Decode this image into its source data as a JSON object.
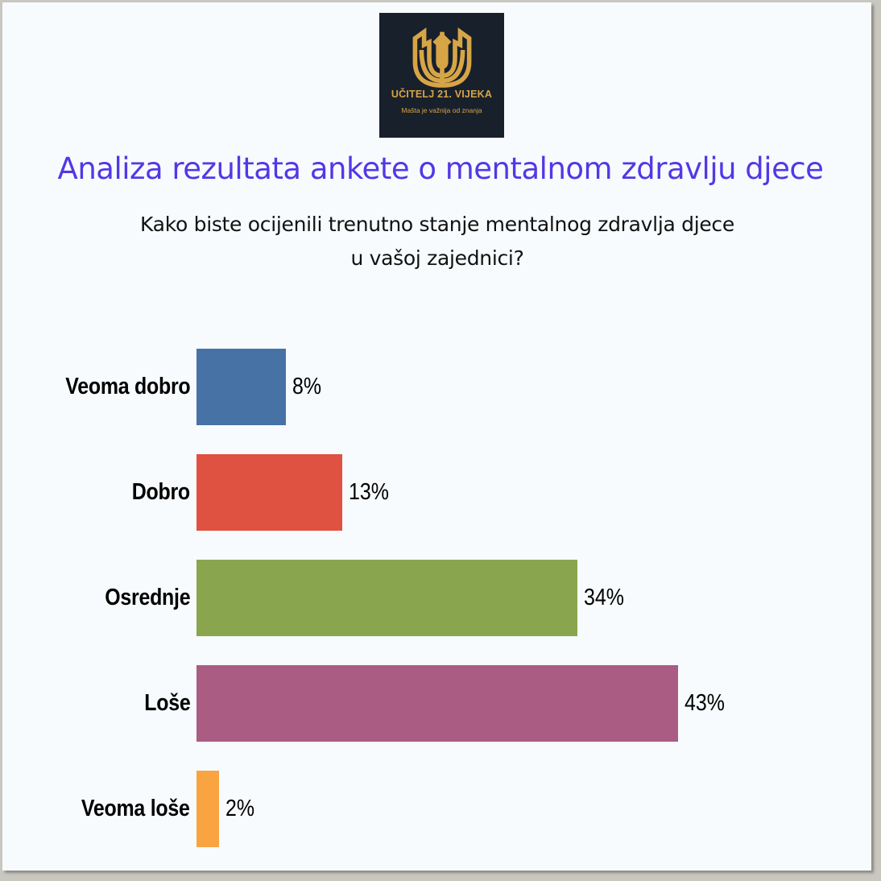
{
  "logo": {
    "icon": "menorah-shield-icon",
    "title": "UČITELJ 21. VIJEKA",
    "tagline": "Mašta je važnija od znanja",
    "background": "#18202c",
    "accent": "#d7a546"
  },
  "header": {
    "title": "Analiza rezultata ankete o mentalnom zdravlju djece",
    "question_line1": "Kako biste ocijenili trenutno stanje mentalnog zdravlja djece",
    "question_line2": "u vašoj zajednici?"
  },
  "chart_data": {
    "type": "bar",
    "orientation": "horizontal",
    "title": "Analiza rezultata ankete o mentalnom zdravlju djece",
    "subtitle": "Kako biste ocijenili trenutno stanje mentalnog zdravlja djece u vašoj zajednici?",
    "categories": [
      "Veoma dobro",
      "Dobro",
      "Osrednje",
      "Loše",
      "Veoma loše"
    ],
    "values": [
      8,
      13,
      34,
      43,
      2
    ],
    "labels": [
      "8%",
      "13%",
      "34%",
      "43%",
      "2%"
    ],
    "colors": [
      "#4672a6",
      "#df5140",
      "#89a64e",
      "#ab5c82",
      "#f9a441"
    ],
    "unit": "%",
    "xlabel": "",
    "ylabel": "",
    "grid": false,
    "legend": false,
    "axes_visible": false
  }
}
